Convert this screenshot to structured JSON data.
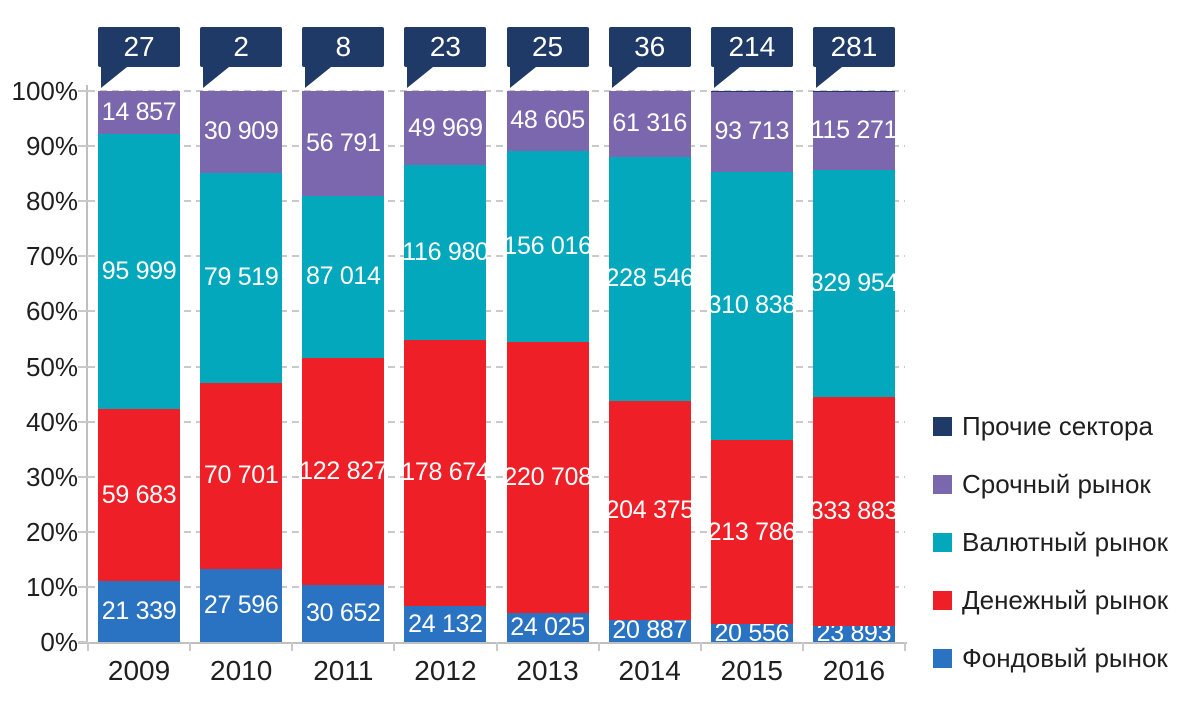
{
  "chart_data": {
    "type": "bar",
    "variant": "stacked-100-percent",
    "title": "",
    "xlabel": "",
    "ylabel": "",
    "ylim": [
      0,
      100
    ],
    "grid": "dashed-horizontal",
    "legend_position": "right",
    "categories": [
      "2009",
      "2010",
      "2011",
      "2012",
      "2013",
      "2014",
      "2015",
      "2016"
    ],
    "series": [
      {
        "name": "Фондовый рынок",
        "color": "#2A72C2",
        "values": [
          21339,
          27596,
          30652,
          24132,
          24025,
          20887,
          20556,
          23893
        ],
        "labels": [
          "21 339",
          "27 596",
          "30 652",
          "24 132",
          "24 025",
          "20 887",
          "20 556",
          "23 893"
        ]
      },
      {
        "name": "Денежный рынок",
        "color": "#EE1F26",
        "values": [
          59683,
          70701,
          122827,
          178674,
          220708,
          204375,
          213786,
          333883
        ],
        "labels": [
          "59 683",
          "70 701",
          "122 827",
          "178 674",
          "220 708",
          "204 375",
          "213 786",
          "333 883"
        ]
      },
      {
        "name": "Валютный рынок",
        "color": "#04A8BD",
        "values": [
          95999,
          79519,
          87014,
          116980,
          156016,
          228546,
          310838,
          329954
        ],
        "labels": [
          "95 999",
          "79 519",
          "87 014",
          "116 980",
          "156 016",
          "228 546",
          "310 838",
          "329 954"
        ]
      },
      {
        "name": "Срочный рынок",
        "color": "#7A67AD",
        "values": [
          14857,
          30909,
          56791,
          49969,
          48605,
          61316,
          93713,
          115271
        ],
        "labels": [
          "14 857",
          "30 909",
          "56 791",
          "49 969",
          "48 605",
          "61 316",
          "93 713",
          "115 271"
        ]
      },
      {
        "name": "Прочие сектора",
        "color": "#1F3A66",
        "values": [
          27,
          2,
          8,
          23,
          25,
          36,
          214,
          281
        ],
        "labels": null,
        "shown_as": "callout-above-bar"
      }
    ],
    "y_ticks": [
      "0%",
      "10%",
      "20%",
      "30%",
      "40%",
      "50%",
      "60%",
      "70%",
      "80%",
      "90%",
      "100%"
    ],
    "legend_order": [
      "Прочие сектора",
      "Срочный рынок",
      "Валютный рынок",
      "Денежный рынок",
      "Фондовый рынок"
    ]
  },
  "colors": {
    "axis": "#BFBFBF",
    "grid": "#C9C9C9",
    "axis_text": "#1F1F1F",
    "bar_label_text": "#FFFFFF",
    "callout_bg": "#1F3A66"
  }
}
